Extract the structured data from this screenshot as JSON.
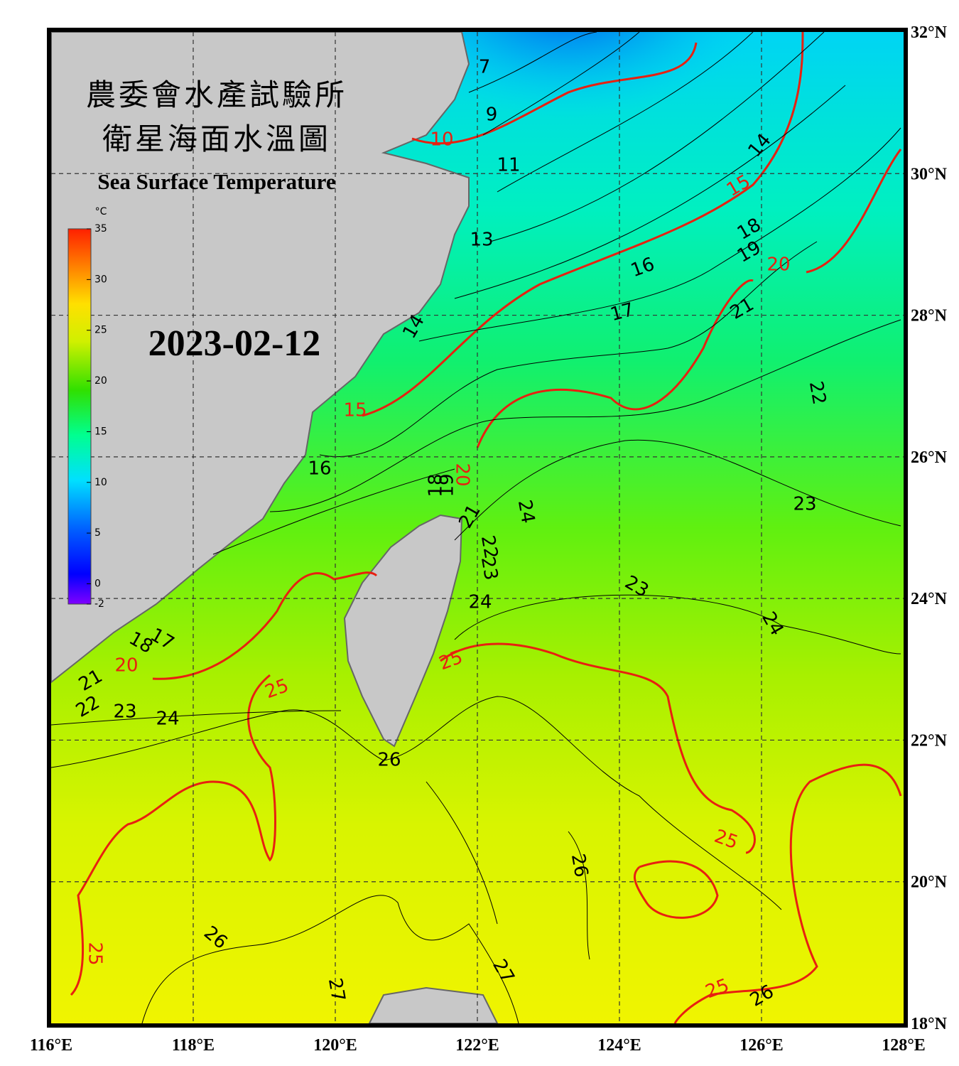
{
  "title_zh_1": "農委會水產試驗所",
  "title_zh_2": "衛星海面水溫圖",
  "title_en": "Sea Surface Temperature",
  "date": "2023-02-12",
  "colorbar": {
    "unit": "°C",
    "ticks": [
      35,
      30,
      25,
      20,
      15,
      10,
      5,
      0,
      -2
    ],
    "range": [
      -2,
      35
    ]
  },
  "lon_ticks": [
    {
      "value": 116,
      "label": "116°E"
    },
    {
      "value": 118,
      "label": "118°E"
    },
    {
      "value": 120,
      "label": "120°E"
    },
    {
      "value": 122,
      "label": "122°E"
    },
    {
      "value": 124,
      "label": "124°E"
    },
    {
      "value": 126,
      "label": "126°E"
    },
    {
      "value": 128,
      "label": "128°E"
    }
  ],
  "lat_ticks": [
    {
      "value": 32,
      "label": "32°N"
    },
    {
      "value": 30,
      "label": "30°N"
    },
    {
      "value": 28,
      "label": "28°N"
    },
    {
      "value": 26,
      "label": "26°N"
    },
    {
      "value": 24,
      "label": "24°N"
    },
    {
      "value": 22,
      "label": "22°N"
    },
    {
      "value": 20,
      "label": "20°N"
    },
    {
      "value": 18,
      "label": "18°N"
    }
  ],
  "contour_labels": [
    "7",
    "9",
    "10",
    "11",
    "14",
    "15",
    "13",
    "18",
    "19",
    "20",
    "16",
    "17",
    "21",
    "14",
    "22",
    "15",
    "16",
    "20",
    "18",
    "19",
    "23",
    "24",
    "21",
    "22",
    "23",
    "23",
    "24",
    "24",
    "17",
    "18",
    "20",
    "21",
    "25",
    "25",
    "22",
    "23",
    "24",
    "26",
    "25",
    "26",
    "26",
    "25",
    "27",
    "27",
    "25",
    "26"
  ]
}
